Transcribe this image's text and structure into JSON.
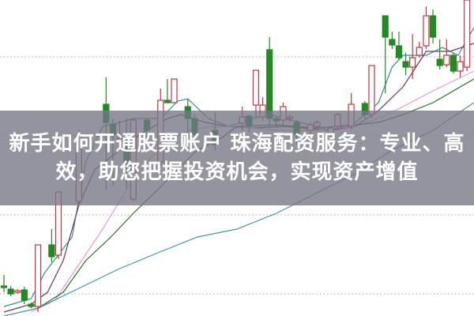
{
  "banner": {
    "line1": "新手如何开通股票账户 珠海配资服务：专业、高",
    "line2": "效，助您把握投资机会，实现资产增值"
  },
  "colors": {
    "up": "#c8323c",
    "down": "#238a23",
    "grid": "#a0a0a0",
    "banner": "#767686"
  },
  "chart_data": {
    "type": "candlestick",
    "title": "",
    "xlabel": "",
    "ylabel": "",
    "xlim": [
      0,
      69
    ],
    "ylim": [
      0,
      400
    ],
    "grid": true,
    "grid_style": "dotted",
    "grid_values": [
      28,
      128,
      228,
      328
    ],
    "candle_fields": [
      "day",
      "open",
      "close",
      "high",
      "low"
    ],
    "candles": [
      [
        0,
        38,
        36,
        52,
        30
      ],
      [
        1,
        34,
        28,
        38,
        25
      ],
      [
        2,
        30,
        32,
        34,
        28
      ],
      [
        3,
        33,
        20,
        37,
        15
      ],
      [
        4,
        15,
        12,
        17,
        10
      ],
      [
        5,
        12,
        90,
        90,
        5
      ],
      [
        7,
        90,
        75,
        110,
        68
      ],
      [
        8,
        77,
        157,
        157,
        72
      ],
      [
        11,
        145,
        228,
        235,
        142
      ],
      [
        15,
        268,
        245,
        302,
        160
      ],
      [
        16,
        243,
        230,
        250,
        165
      ],
      [
        17,
        221,
        225,
        247,
        218
      ],
      [
        18,
        225,
        190,
        250,
        162
      ],
      [
        19,
        148,
        248,
        250,
        145
      ],
      [
        21,
        248,
        235,
        250,
        220
      ],
      [
        23,
        195,
        273,
        288,
        190
      ],
      [
        24,
        273,
        270,
        300,
        270
      ],
      [
        25,
        270,
        300,
        300,
        270
      ],
      [
        27,
        265,
        250,
        275,
        225
      ],
      [
        28,
        250,
        230,
        255,
        215
      ],
      [
        31,
        235,
        217,
        258,
        210
      ],
      [
        35,
        244,
        252,
        265,
        235
      ],
      [
        36,
        253,
        240,
        255,
        232
      ],
      [
        37,
        267,
        311,
        311,
        250
      ],
      [
        38,
        252,
        267,
        277,
        247
      ],
      [
        39,
        337,
        250,
        353,
        240
      ],
      [
        40,
        250,
        247,
        253,
        240
      ],
      [
        41,
        248,
        265,
        270,
        240
      ],
      [
        42,
        250,
        252,
        255,
        245
      ],
      [
        43,
        245,
        230,
        248,
        217
      ],
      [
        45,
        235,
        242,
        245,
        230
      ],
      [
        46,
        240,
        245,
        248,
        235
      ],
      [
        48,
        230,
        238,
        240,
        225
      ],
      [
        49,
        240,
        255,
        257,
        235
      ],
      [
        51,
        240,
        268,
        282,
        235
      ],
      [
        53,
        269,
        255,
        272,
        250
      ],
      [
        54,
        255,
        317,
        317,
        250
      ],
      [
        56,
        380,
        353,
        380,
        282
      ],
      [
        57,
        350,
        343,
        360,
        338
      ],
      [
        58,
        342,
        327,
        360,
        325
      ],
      [
        59,
        322,
        315,
        333,
        305
      ],
      [
        60,
        315,
        327,
        357,
        300
      ],
      [
        61,
        330,
        340,
        347,
        327
      ],
      [
        62,
        342,
        380,
        392,
        338
      ],
      [
        63,
        380,
        353,
        388,
        345
      ],
      [
        64,
        325,
        317,
        350,
        312
      ],
      [
        65,
        318,
        330,
        350,
        315
      ],
      [
        66,
        330,
        310,
        333,
        307
      ],
      [
        67,
        310,
        322,
        330,
        302
      ],
      [
        68,
        315,
        400,
        400,
        310
      ]
    ],
    "moving_averages": [
      {
        "color": "#2f8f8f",
        "points": [
          [
            0,
            12
          ],
          [
            4,
            22
          ],
          [
            6,
            55
          ],
          [
            10,
            100
          ],
          [
            12,
            195
          ],
          [
            14.5,
            240
          ],
          [
            17,
            245
          ],
          [
            19,
            250
          ],
          [
            23,
            250
          ],
          [
            25.5,
            272
          ],
          [
            27,
            275
          ],
          [
            30,
            250
          ],
          [
            33,
            240
          ],
          [
            36.5,
            250
          ],
          [
            39,
            255
          ],
          [
            43.5,
            245
          ],
          [
            48,
            235
          ],
          [
            51.6,
            245
          ],
          [
            55,
            270
          ],
          [
            57,
            315
          ],
          [
            58.6,
            330
          ],
          [
            62,
            330
          ],
          [
            64.4,
            340
          ],
          [
            66.7,
            330
          ],
          [
            69,
            365
          ]
        ]
      },
      {
        "color": "#6a3a5a",
        "points": [
          [
            0,
            5
          ],
          [
            4,
            15
          ],
          [
            6.4,
            30
          ],
          [
            8.7,
            70
          ],
          [
            11,
            140
          ],
          [
            13.3,
            185
          ],
          [
            17,
            210
          ],
          [
            20,
            230
          ],
          [
            24,
            250
          ],
          [
            26,
            255
          ],
          [
            29.6,
            245
          ],
          [
            33,
            240
          ],
          [
            36.5,
            238
          ],
          [
            41,
            240
          ],
          [
            48,
            235
          ],
          [
            51.6,
            240
          ],
          [
            55,
            260
          ],
          [
            58.6,
            290
          ],
          [
            62,
            335
          ],
          [
            65.5,
            335
          ],
          [
            69,
            345
          ]
        ]
      },
      {
        "color": "#e39ad8",
        "points": [
          [
            4,
            5
          ],
          [
            7.5,
            20
          ],
          [
            11,
            65
          ],
          [
            14.5,
            110
          ],
          [
            18,
            160
          ],
          [
            21.5,
            200
          ],
          [
            23.8,
            220
          ],
          [
            27.3,
            235
          ],
          [
            30.7,
            240
          ],
          [
            34.2,
            240
          ],
          [
            40,
            235
          ],
          [
            45.8,
            235
          ],
          [
            51.6,
            240
          ],
          [
            55,
            250
          ],
          [
            58.6,
            265
          ],
          [
            63,
            285
          ],
          [
            69,
            310
          ]
        ]
      },
      {
        "color": "#2e6e2e",
        "points": [
          [
            5,
            10
          ],
          [
            8.7,
            30
          ],
          [
            12,
            70
          ],
          [
            15.7,
            100
          ],
          [
            19,
            130
          ],
          [
            22.6,
            160
          ],
          [
            26,
            190
          ],
          [
            28.4,
            210
          ],
          [
            31.9,
            225
          ],
          [
            34.2,
            240
          ],
          [
            40,
            242
          ],
          [
            45.8,
            238
          ],
          [
            51.6,
            242
          ],
          [
            55,
            245
          ],
          [
            58.6,
            255
          ],
          [
            63,
            270
          ],
          [
            69,
            300
          ]
        ]
      },
      {
        "color": "#3a9aa8",
        "points": [
          [
            0,
            0
          ],
          [
            5,
            10
          ],
          [
            11,
            35
          ],
          [
            17,
            60
          ],
          [
            22.6,
            80
          ],
          [
            28.4,
            100
          ],
          [
            34.2,
            110
          ],
          [
            40,
            130
          ],
          [
            45.8,
            155
          ],
          [
            51.6,
            180
          ],
          [
            57,
            210
          ],
          [
            63,
            235
          ],
          [
            69,
            270
          ]
        ]
      }
    ]
  }
}
